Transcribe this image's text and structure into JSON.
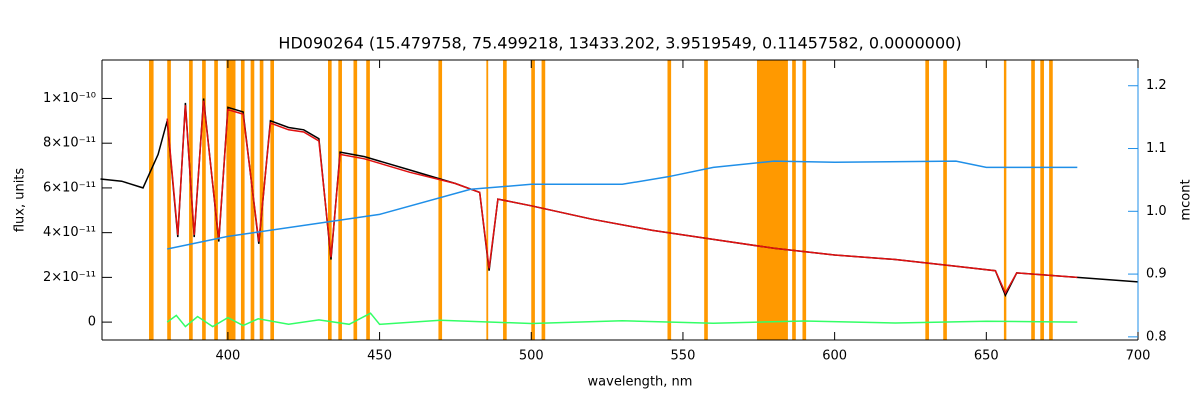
{
  "chart_data": {
    "type": "line",
    "title": "HD090264    (15.479758, 75.499218, 13433.202, 3.9519549, 0.11457582, 0.0000000)",
    "x_label": "wavelength, nm",
    "y_label": "flux, units",
    "y2_label": "mcont",
    "xlim": [
      358.5,
      700
    ],
    "xticks": [
      400,
      450,
      500,
      550,
      600,
      650,
      700
    ],
    "ylim": [
      -8e-12,
      1.172e-10
    ],
    "yticks": [
      0,
      {
        "value": 2e-11,
        "label": "2×10⁻¹¹"
      },
      {
        "value": 4e-11,
        "label": "4×10⁻¹¹"
      },
      {
        "value": 6e-11,
        "label": "6×10⁻¹¹"
      },
      {
        "value": 8e-11,
        "label": "8×10⁻¹¹"
      },
      {
        "value": 1e-10,
        "label": "1×10⁻¹⁰"
      }
    ],
    "y2lim": [
      0.795,
      1.241
    ],
    "y2ticks": [
      0.8,
      0.9,
      {
        "value": 1,
        "label": "1.0"
      },
      1.1,
      1.2
    ],
    "y2_color": "#1f8fe8",
    "mask_color": "#ff9900",
    "masks": [
      [
        374,
        375.5
      ],
      [
        380,
        381.2
      ],
      [
        387.2,
        388.4
      ],
      [
        391.5,
        392.7
      ],
      [
        395.5,
        396.7
      ],
      [
        399.5,
        402.5
      ],
      [
        404.3,
        405.5
      ],
      [
        407.5,
        408.7
      ],
      [
        410.5,
        411.7
      ],
      [
        414,
        415.2
      ],
      [
        433,
        434.2
      ],
      [
        436.4,
        437.6
      ],
      [
        441.4,
        442.6
      ],
      [
        445.6,
        446.8
      ],
      [
        469.4,
        470.6
      ],
      [
        485.2,
        485.8
      ],
      [
        490.7,
        491.9
      ],
      [
        500,
        501.2
      ],
      [
        503.4,
        504.6
      ],
      [
        544.9,
        546.1
      ],
      [
        557,
        558.2
      ],
      [
        574.4,
        584.6
      ],
      [
        586,
        587.2
      ],
      [
        589.4,
        590.6
      ],
      [
        629.9,
        631.1
      ],
      [
        635.8,
        637
      ],
      [
        655.8,
        656.6
      ],
      [
        664.8,
        666
      ],
      [
        667.8,
        669
      ],
      [
        670.7,
        671.9
      ]
    ],
    "x": [
      358,
      365,
      372,
      377,
      380,
      383.5,
      386,
      388.9,
      392,
      397,
      400,
      405,
      410.2,
      414,
      420,
      425,
      430,
      434,
      437,
      445,
      460,
      475,
      483,
      486.1,
      489,
      500,
      520,
      540,
      560,
      580,
      600,
      620,
      640,
      653,
      656.3,
      660,
      680,
      700
    ],
    "series": [
      {
        "color": "#000000",
        "values": [
          6.4e-11,
          6.3e-11,
          6e-11,
          7.5e-11,
          9e-11,
          3.8e-11,
          9.8e-11,
          3.8e-11,
          1e-10,
          3.6e-11,
          9.6e-11,
          9.4e-11,
          3.5e-11,
          9e-11,
          8.7e-11,
          8.6e-11,
          8.2e-11,
          2.8e-11,
          7.6e-11,
          7.4e-11,
          6.8e-11,
          6.2e-11,
          5.8e-11,
          2.3e-11,
          5.5e-11,
          5.2e-11,
          4.6e-11,
          4.1e-11,
          3.7e-11,
          3.3e-11,
          3e-11,
          2.8e-11,
          2.5e-11,
          2.3e-11,
          1.2e-11,
          2.2e-11,
          2e-11,
          1.8e-11
        ]
      },
      {
        "color": "#e01010",
        "values": [
          null,
          null,
          null,
          null,
          9.1e-11,
          3.9e-11,
          9.7e-11,
          3.9e-11,
          9.9e-11,
          3.7e-11,
          9.5e-11,
          9.3e-11,
          3.6e-11,
          8.9e-11,
          8.6e-11,
          8.5e-11,
          8.1e-11,
          2.9e-11,
          7.5e-11,
          7.3e-11,
          6.7e-11,
          6.2e-11,
          5.8e-11,
          2.4e-11,
          5.5e-11,
          5.2e-11,
          4.6e-11,
          4.1e-11,
          3.7e-11,
          3.3e-11,
          3e-11,
          2.8e-11,
          2.5e-11,
          2.3e-11,
          1.3e-11,
          2.2e-11,
          2e-11,
          null
        ]
      },
      {
        "color": "#1f8fe8",
        "axis": "y2",
        "x": [
          380,
          400,
          450,
          480,
          500,
          530,
          545,
          560,
          580,
          600,
          640,
          650,
          680
        ],
        "values": [
          0.94,
          0.96,
          0.995,
          1.035,
          1.043,
          1.043,
          1.055,
          1.07,
          1.08,
          1.078,
          1.08,
          1.07,
          1.07
        ]
      },
      {
        "color": "#33ff66",
        "x": [
          380,
          383,
          386,
          390,
          395,
          400,
          405,
          410,
          420,
          430,
          440,
          447,
          450,
          470,
          500,
          530,
          560,
          590,
          620,
          650,
          680
        ],
        "values": [
          0,
          3e-12,
          -2e-12,
          2.5e-12,
          -2e-12,
          2e-12,
          -1.5e-12,
          1.5e-12,
          -1e-12,
          1e-12,
          -1e-12,
          4e-12,
          -1e-12,
          8e-13,
          -6e-13,
          6e-13,
          -5e-13,
          5e-13,
          -4e-13,
          4e-13,
          0
        ]
      }
    ]
  }
}
